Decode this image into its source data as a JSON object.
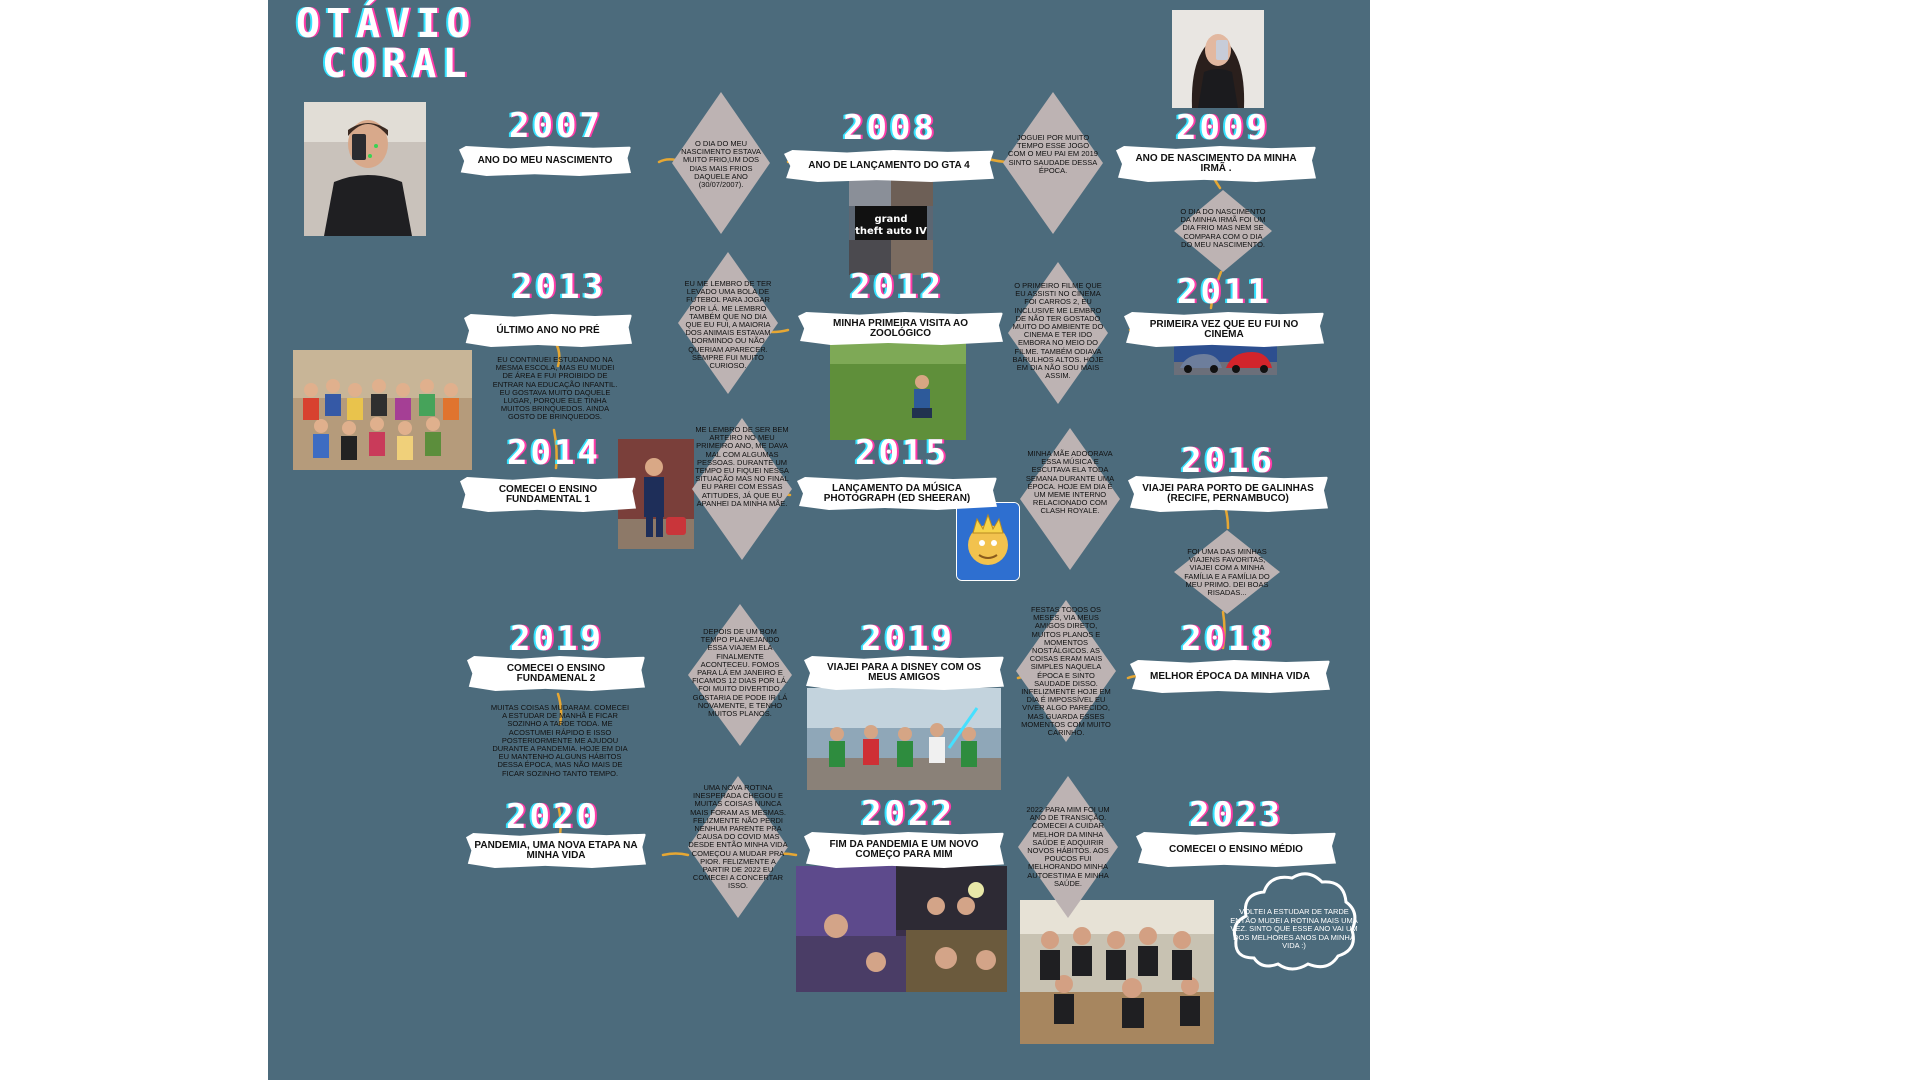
{
  "title": {
    "line1": "OTÁVIO",
    "line2": "CORAL"
  },
  "colors": {
    "background": "#4c6b7c",
    "connector": "#e6a733",
    "diamond": "#bdb3b3",
    "banner": "#ffffff"
  },
  "events": {
    "y2007": {
      "year": "2007",
      "caption": "ANO DO MEU NASCIMENTO"
    },
    "y2008": {
      "year": "2008",
      "caption": "ANO DE LANÇAMENTO DO GTA 4"
    },
    "y2009": {
      "year": "2009",
      "caption": "ANO DE NASCIMENTO DA MINHA IRMÃ ."
    },
    "y2013": {
      "year": "2013",
      "caption": "ÚLTIMO ANO NO PRÉ"
    },
    "y2012": {
      "year": "2012",
      "caption": "MINHA PRIMEIRA VISITA AO ZOOLÓGICO"
    },
    "y2011": {
      "year": "2011",
      "caption": "PRIMEIRA VEZ QUE EU FUI NO CINEMA"
    },
    "y2014": {
      "year": "2014",
      "caption": "COMECEI O ENSINO FUNDAMENTAL 1"
    },
    "y2015": {
      "year": "2015",
      "caption": "LANÇAMENTO DA MÚSICA PHOTOGRAPH (ED SHEERAN)"
    },
    "y2016": {
      "year": "2016",
      "caption": "VIAJEI PARA PORTO DE GALINHAS (RECIFE, PERNAMBUCO)"
    },
    "y2019a": {
      "year": "2019",
      "caption": "COMECEI O ENSINO FUNDAMENAL 2"
    },
    "y2019b": {
      "year": "2019",
      "caption": "VIAJEI PARA A DISNEY COM OS MEUS AMIGOS"
    },
    "y2018": {
      "year": "2018",
      "caption": "MELHOR ÉPOCA DA MINHA VIDA"
    },
    "y2020": {
      "year": "2020",
      "caption": "PANDEMIA, UMA NOVA ETAPA NA MINHA VIDA"
    },
    "y2022": {
      "year": "2022",
      "caption": "FIM DA PANDEMIA E UM NOVO COMEÇO PARA MIM"
    },
    "y2023": {
      "year": "2023",
      "caption": "COMECEI O ENSINO MÉDIO"
    }
  },
  "notes": {
    "n2007": "O DIA DO MEU NASCIMENTO ESTAVA MUITO FRIO,UM DOS DIAS MAIS FRIOS DAQUELE ANO (30/07/2007).",
    "n2008": "JOGUEI POR MUITO TEMPO ESSE JOGO COM O MEU PAI EM 2019 SINTO SAUDADE DESSA ÉPOCA.",
    "n2009": "O DIA DO NASCIMENTO DA MINHA IRMÃ FOI UM DIA FRIO MAS NEM SE COMPARA COM O DIA DO MEU NASCIMENTO.",
    "n2013": "EU ME LEMBRO DE TER LEVADO UMA BOLA DE FUTEBOL PARA JOGAR POR LÁ. ME LEMBRO TAMBÉM QUE NO DIA QUE EU FUI, A MAIORIA DOS ANIMAIS ESTAVAM DORMINDO OU NÃO QUERIAM APARECER. SEMPRE FUI MUITO CURIOSO.",
    "n2011": "O PRIMEIRO FILME QUE EU ASSISTI NO CINEMA FOI CARROS 2, EU INCLUSIVE ME LEMBRO DE NÃO TER GOSTADO MUITO DO AMBIENTE DO CINEMA E TER IDO EMBORA NO MEIO DO FILME. TAMBÉM ODIAVA BARULHOS ALTOS. HOJE EM DIA NÃO SOU MAIS ASSIM.",
    "n2013b": "EU CONTINUEI ESTUDANDO NA MESMA ESCOLA, MAS EU MUDEI DE ÁREA E FUI PROIBIDO DE ENTRAR NA EDUCAÇÃO INFANTIL. EU GOSTAVA MUITO DAQUELE LUGAR, PORQUE ELE TINHA MUITOS BRINQUEDOS. AINDA GOSTO DE BRINQUEDOS.",
    "n2014": "ME LEMBRO DE SER BEM ARTEIRO NO MEU PRIMEIRO ANO, ME DAVA MAL COM ALGUMAS PESSOAS. DURANTE UM TEMPO EU FIQUEI NESSA SITUAÇÃO MAS NO FINAL EU PAREI COM ESSAS ATITUDES, JÁ QUE EU APANHEI DA MINHA MÃE.",
    "n2015": "MINHA MÃE ADOORAVA ESSA MÚSICA E ESCUTAVA ELA TODA SEMANA DURANTE UMA ÉPOCA. HOJE EM DIA É UM MEME INTERNO RELACIONADO COM CLASH ROYALE.",
    "n2016": "FOI UMA DAS MINHAS VIAJENS FAVORITAS, VIAJEI COM A MINHA FAMÍLIA E A FAMÍLIA DO MEU PRIMO. DEI BOAS RISADAS...",
    "n2019a": "DEPOIS DE UM BOM TEMPO PLANEJANDO ESSA VIAJEM ELA FINALMENTE ACONTECEU. FOMOS PARA LÁ EM JANEIRO E FICAMOS 12 DIAS POR LÁ. FOI MUITO DIVERTIDO. GOSTARIA DE PODE IR LÁ NOVAMENTE, E TENHO MUITOS PLANOS.",
    "n2018": "FESTAS TODOS OS MESES, VIA MEUS AMIGOS DIRETO, MUITOS PLANOS E MOMENTOS NOSTÁLGICOS. AS COISAS ERAM MAIS SIMPLES NAQUELA ÉPOCA E SINTO SAUDADE DISSO. INFELIZMENTE HOJE EM DIA É IMPOSSÍVEL EU VIVER ALGO PARECIDO, MAS GUARDA ESSES MOMENTOS COM MUITO CARINHO.",
    "n2019b": "MUITAS COISAS MUDARAM. COMECEI A ESTUDAR DE MANHÃ E FICAR SOZINHO A TARDE TODA. ME ACOSTUMEI RÁPIDO E ISSO POSTERIORMENTE ME AJUDOU DURANTE A PANDEMIA. HOJE EM DIA EU MANTENHO ALGUNS HÁBITOS DESSA ÉPOCA, MAS NÃO MAIS DE FICAR SOZINHO TANTO TEMPO.",
    "n2020": "UMA NOVA ROTINA INESPERADA CHEGOU E MUITAS COISAS NUNCA MAIS FORAM AS MESMAS. FELIZMENTE NÃO PERDI NENHUM PARENTE PRA CAUSA DO COVID MAS DESDE ENTÃO MINHA VIDA COMEÇOU A MUDAR PRA PIOR. FELIZMENTE A PARTIR DE 2022 EU COMECEI A CONCERTAR ISSO.",
    "n2022": "2022 PARA MIM FOI UM ANO DE TRANSIÇÃO. COMECEI A CUIDAR MELHOR DA MINHA SAÚDE E ADQUIRIR NOVOS HÁBITOS. AOS POUCOS FUI MELHORANDO MINHA AUTOESTIMA E MINHA SAÚDE.",
    "n2023": "VOLTEI A ESTUDAR DE TARDE ENTÃO MUDEI A ROTINA MAIS UMA VEZ. SINTO QUE ESSE ANO VAI UM DOS MELHORES ANOS DA MINHA VIDA :)"
  },
  "images": {
    "gta": "grand theft auto IV"
  }
}
